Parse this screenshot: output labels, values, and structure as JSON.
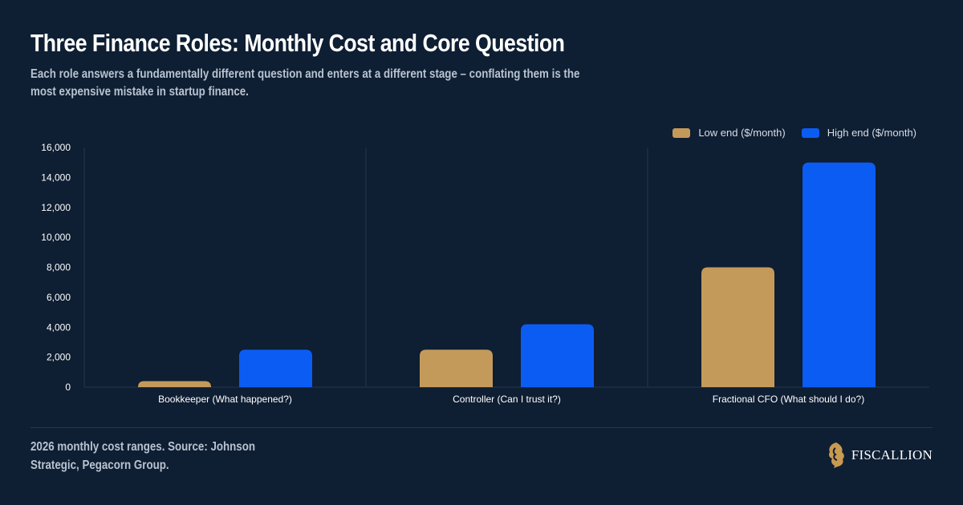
{
  "header": {
    "title": "Three Finance Roles: Monthly Cost and Core Question",
    "subtitle": "Each role answers a fundamentally different question and enters at a different stage – conflating them is the most expensive mistake in startup finance."
  },
  "footer": {
    "source": "2026 monthly cost ranges. Source: Johnson Strategic, Pegacorn Group."
  },
  "brand": {
    "name": "FISCALLION",
    "logo_icon": "lion-icon",
    "logo_color": "#c99a4f"
  },
  "colors": {
    "background": "#0e1e33",
    "low": "#c49a5a",
    "high": "#0b5cf2",
    "grid": "#24364f",
    "axis_text": "#ffffff"
  },
  "chart_data": {
    "type": "bar",
    "title": "",
    "xlabel": "",
    "ylabel": "",
    "categories": [
      "Bookkeeper (What happened?)",
      "Controller (Can I trust it?)",
      "Fractional CFO (What should I do?)"
    ],
    "series": [
      {
        "name": "Low end ($/month)",
        "values": [
          400,
          2500,
          8000
        ],
        "color": "#c49a5a"
      },
      {
        "name": "High end ($/month)",
        "values": [
          2500,
          4200,
          15000
        ],
        "color": "#0b5cf2"
      }
    ],
    "ylim": [
      0,
      16000
    ],
    "yticks": [
      "0",
      "2,000",
      "4,000",
      "6,000",
      "8,000",
      "10,000",
      "12,000",
      "14,000",
      "16,000"
    ],
    "grid": "vertical category separators",
    "legend_position": "top-right"
  }
}
